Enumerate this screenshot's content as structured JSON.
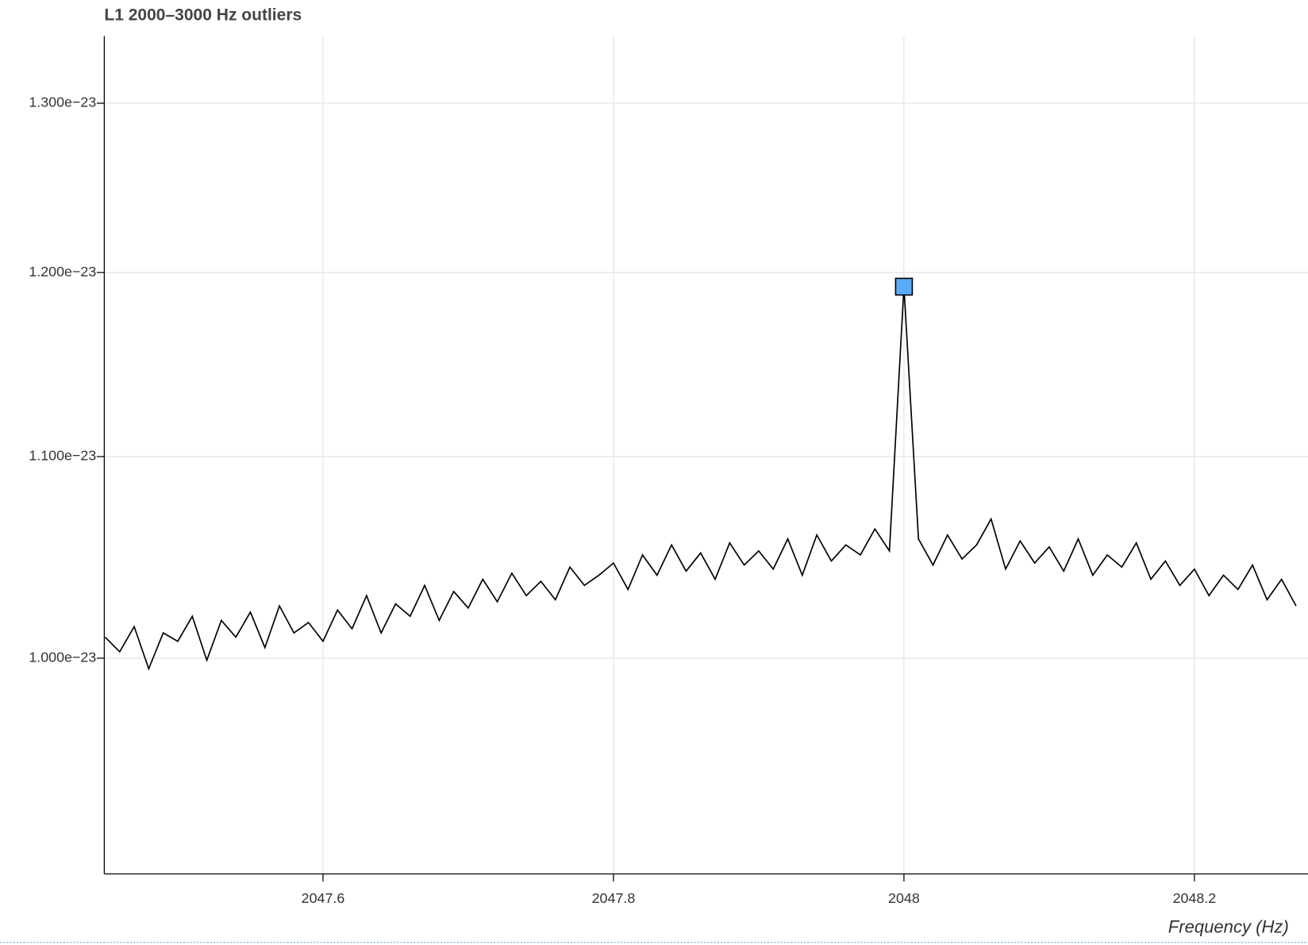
{
  "chart_data": {
    "type": "line",
    "title": "L1 2000–3000 Hz outliers",
    "x_label": "Frequency (Hz)",
    "log_y": true,
    "grid": true,
    "xlim": [
      2047.4494,
      2048.2782
    ],
    "xticks": [
      2047.6,
      2047.8,
      2048,
      2048.2
    ],
    "ylim": [
      9.03e-24,
      1.342e-23
    ],
    "yticks": [
      {
        "value": 1e-23,
        "label": "1.000e−23"
      },
      {
        "value": 1.1e-23,
        "label": "1.100e−23"
      },
      {
        "value": 1.2e-23,
        "label": "1.200e−23"
      },
      {
        "value": 1.3e-23,
        "label": "1.300e−23"
      }
    ],
    "series": [
      {
        "color": "#000000",
        "x": [
          2047.45,
          2047.46,
          2047.47,
          2047.48,
          2047.49,
          2047.5,
          2047.51,
          2047.52,
          2047.53,
          2047.54,
          2047.55,
          2047.56,
          2047.57,
          2047.58,
          2047.59,
          2047.6,
          2047.61,
          2047.62,
          2047.63,
          2047.64,
          2047.65,
          2047.66,
          2047.67,
          2047.68,
          2047.69,
          2047.7,
          2047.71,
          2047.72,
          2047.73,
          2047.74,
          2047.75,
          2047.76,
          2047.77,
          2047.78,
          2047.79,
          2047.8,
          2047.81,
          2047.82,
          2047.83,
          2047.84,
          2047.85,
          2047.86,
          2047.87,
          2047.88,
          2047.89,
          2047.9,
          2047.91,
          2047.92,
          2047.93,
          2047.94,
          2047.95,
          2047.96,
          2047.97,
          2047.98,
          2047.99,
          2048.0,
          2048.01,
          2048.02,
          2048.03,
          2048.04,
          2048.05,
          2048.06,
          2048.07,
          2048.08,
          2048.09,
          2048.1,
          2048.11,
          2048.12,
          2048.13,
          2048.14,
          2048.15,
          2048.16,
          2048.17,
          2048.18,
          2048.19,
          2048.2,
          2048.21,
          2048.22,
          2048.23,
          2048.24,
          2048.25,
          2048.26,
          2048.27
        ],
        "values": [
          1.01e-23,
          1.003e-23,
          1.015e-23,
          9.95e-24,
          1.012e-23,
          1.008e-23,
          1.02e-23,
          9.99e-24,
          1.018e-23,
          1.01e-23,
          1.022e-23,
          1.005e-23,
          1.025e-23,
          1.012e-23,
          1.017e-23,
          1.008e-23,
          1.023e-23,
          1.014e-23,
          1.03e-23,
          1.012e-23,
          1.026e-23,
          1.02e-23,
          1.035e-23,
          1.018e-23,
          1.032e-23,
          1.024e-23,
          1.038e-23,
          1.027e-23,
          1.041e-23,
          1.03e-23,
          1.037e-23,
          1.028e-23,
          1.044e-23,
          1.035e-23,
          1.04e-23,
          1.046e-23,
          1.033e-23,
          1.05e-23,
          1.04e-23,
          1.055e-23,
          1.042e-23,
          1.051e-23,
          1.038e-23,
          1.056e-23,
          1.045e-23,
          1.052e-23,
          1.043e-23,
          1.058e-23,
          1.04e-23,
          1.06e-23,
          1.047e-23,
          1.055e-23,
          1.05e-23,
          1.063e-23,
          1.052e-23,
          1.192e-23,
          1.058e-23,
          1.045e-23,
          1.06e-23,
          1.048e-23,
          1.055e-23,
          1.068e-23,
          1.043e-23,
          1.057e-23,
          1.046e-23,
          1.054e-23,
          1.042e-23,
          1.058e-23,
          1.04e-23,
          1.05e-23,
          1.044e-23,
          1.056e-23,
          1.038e-23,
          1.047e-23,
          1.035e-23,
          1.043e-23,
          1.03e-23,
          1.04e-23,
          1.033e-23,
          1.045e-23,
          1.028e-23,
          1.038e-23,
          1.025e-23
        ]
      },
      {
        "color": "#5aabf5",
        "marker": "square",
        "x": [
          2048.0
        ],
        "values": [
          1.192e-23
        ]
      }
    ]
  }
}
